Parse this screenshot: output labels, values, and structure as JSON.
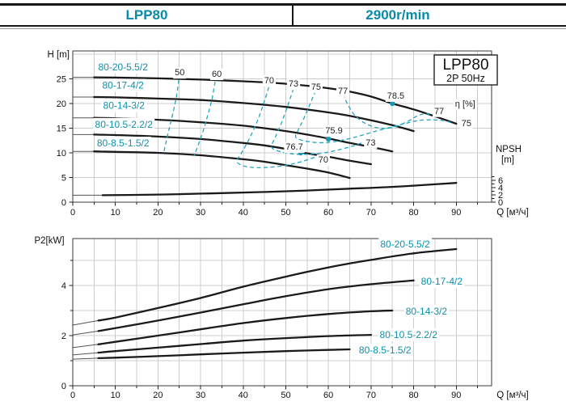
{
  "header": {
    "model": "LPP80",
    "speed": "2900r/min"
  },
  "colors": {
    "teal_text": "#0e8fae",
    "dash": "#23a6c0",
    "curve": "#1a1a1a",
    "grid": "#cccccc"
  },
  "chart_data": [
    {
      "id": "hq",
      "type": "line",
      "title_box": [
        "LPP80",
        "2P  50Hz"
      ],
      "xlabel": "Q [м³/ч]",
      "ylabel": "H [m]",
      "xlim": [
        0,
        98.3
      ],
      "ylim": [
        0,
        30.65
      ],
      "grid": true,
      "x_tick_labels": [
        0,
        10,
        20,
        30,
        40,
        50,
        60,
        70,
        80,
        90
      ],
      "x_grid": [
        5,
        10,
        15,
        20,
        25,
        30,
        35,
        40,
        45,
        50,
        55,
        60,
        65,
        70,
        75,
        80,
        85,
        90,
        95
      ],
      "y_tick_labels": [
        0,
        5,
        10,
        15,
        20,
        25
      ],
      "y_grid": [
        5,
        10,
        15,
        20,
        25,
        30
      ],
      "series": [
        {
          "name": "80-20-5.5/2",
          "lead": 1,
          "points": [
            [
              0,
              25.3
            ],
            [
              5,
              25.3
            ],
            [
              10,
              25.25
            ],
            [
              20,
              25.1
            ],
            [
              30,
              24.85
            ],
            [
              40,
              24.5
            ],
            [
              50,
              24.0
            ],
            [
              60,
              23.1
            ],
            [
              65,
              22.4
            ],
            [
              70,
              21.4
            ],
            [
              75,
              20.0
            ],
            [
              80,
              18.8
            ],
            [
              85,
              17.4
            ],
            [
              90,
              15.9
            ]
          ]
        },
        {
          "name": "80-17-4/2",
          "lead": 1,
          "points": [
            [
              0,
              21.3
            ],
            [
              5,
              21.3
            ],
            [
              10,
              21.25
            ],
            [
              20,
              21.0
            ],
            [
              30,
              20.7
            ],
            [
              40,
              20.1
            ],
            [
              50,
              19.3
            ],
            [
              60,
              18.2
            ],
            [
              65,
              17.5
            ],
            [
              70,
              16.6
            ],
            [
              75,
              15.6
            ],
            [
              80,
              14.4
            ]
          ]
        },
        {
          "name": "80-14-3/2",
          "lead": 1,
          "points": [
            [
              0,
              17.1
            ],
            [
              5,
              17.1
            ],
            [
              10,
              17.0
            ],
            [
              20,
              16.7
            ],
            [
              30,
              16.2
            ],
            [
              40,
              15.5
            ],
            [
              50,
              14.4
            ],
            [
              55,
              13.7
            ],
            [
              60,
              12.9
            ],
            [
              65,
              12.0
            ],
            [
              70,
              11.2
            ],
            [
              75,
              10.3
            ]
          ]
        },
        {
          "name": "80-10.5-2.2/2",
          "lead": 1,
          "points": [
            [
              0,
              13.7
            ],
            [
              5,
              13.7
            ],
            [
              10,
              13.6
            ],
            [
              20,
              13.3
            ],
            [
              30,
              12.8
            ],
            [
              40,
              12.0
            ],
            [
              45,
              11.5
            ],
            [
              50,
              10.8
            ],
            [
              55,
              9.9
            ],
            [
              60,
              9.2
            ],
            [
              65,
              8.4
            ],
            [
              70,
              7.7
            ]
          ]
        },
        {
          "name": "80-8.5-1.5/2",
          "lead": 1,
          "points": [
            [
              0,
              10.3
            ],
            [
              5,
              10.3
            ],
            [
              10,
              10.2
            ],
            [
              20,
              10.0
            ],
            [
              30,
              9.5
            ],
            [
              40,
              8.7
            ],
            [
              45,
              8.2
            ],
            [
              50,
              7.5
            ],
            [
              55,
              6.8
            ],
            [
              60,
              6.0
            ],
            [
              65,
              4.9
            ]
          ]
        },
        {
          "name": "NPSH",
          "axis": "npsh",
          "lead": 1,
          "points": [
            [
              0,
              1.9
            ],
            [
              7,
              1.9
            ],
            [
              15,
              2.0
            ],
            [
              25,
              2.2
            ],
            [
              35,
              2.5
            ],
            [
              45,
              2.8
            ],
            [
              55,
              3.2
            ],
            [
              65,
              3.7
            ],
            [
              75,
              4.2
            ],
            [
              85,
              4.9
            ],
            [
              90,
              5.3
            ]
          ]
        }
      ],
      "npsh_axis": {
        "title": [
          "NPSH",
          "[m]"
        ],
        "tick_labels": [
          0,
          2,
          4,
          6
        ],
        "minor_ticks": [
          1,
          3,
          5,
          7
        ]
      },
      "eta_contours": [
        {
          "value": "50",
          "points": [
            [
              24.9,
              24.8
            ],
            [
              24.3,
              21.3
            ],
            [
              23.5,
              18.0
            ],
            [
              22.6,
              14.8
            ],
            [
              21.8,
              11.8
            ],
            [
              21.3,
              9.9
            ]
          ]
        },
        {
          "value": "60",
          "points": [
            [
              33.4,
              24.4
            ],
            [
              32.7,
              21.0
            ],
            [
              31.7,
              17.7
            ],
            [
              30.6,
              14.4
            ],
            [
              29.4,
              11.5
            ],
            [
              28.5,
              9.4
            ]
          ]
        },
        {
          "value": "70",
          "points": [
            [
              46.0,
              23.3
            ],
            [
              44.8,
              20.0
            ],
            [
              43.3,
              16.4
            ],
            [
              41.4,
              12.8
            ],
            [
              39.5,
              9.8
            ],
            [
              38.5,
              8.2
            ],
            [
              40.8,
              7.2
            ],
            [
              44.6,
              7.0
            ],
            [
              49.4,
              7.4
            ],
            [
              53.6,
              8.2
            ],
            [
              57.5,
              9.3
            ]
          ]
        },
        {
          "value": "73",
          "points": [
            [
              51.8,
              23.0
            ],
            [
              50.5,
              19.7
            ],
            [
              49.0,
              16.1
            ],
            [
              47.5,
              13.1
            ],
            [
              46.7,
              11.1
            ],
            [
              49.0,
              10.2
            ],
            [
              53.2,
              9.7
            ],
            [
              58.9,
              10.0
            ],
            [
              64.2,
              11.0
            ],
            [
              67.8,
              12.0
            ]
          ]
        },
        {
          "value": "75",
          "points": [
            [
              57.0,
              22.6
            ],
            [
              55.6,
              19.7
            ],
            [
              54.1,
              16.7
            ],
            [
              52.8,
              14.4
            ],
            [
              52.4,
              13.1
            ],
            [
              55.1,
              12.3
            ],
            [
              59.8,
              12.1
            ],
            [
              65.5,
              13.0
            ],
            [
              71.2,
              14.4
            ],
            [
              76.9,
              15.7
            ],
            [
              81.6,
              16.6
            ],
            [
              86.4,
              16.6
            ],
            [
              88.9,
              16.1
            ]
          ]
        },
        {
          "value": "77",
          "points": [
            [
              63.4,
              22.0
            ],
            [
              64.6,
              19.7
            ],
            [
              66.1,
              17.7
            ],
            [
              68.4,
              16.1
            ],
            [
              71.4,
              15.1
            ],
            [
              74.8,
              15.1
            ],
            [
              78.2,
              16.2
            ],
            [
              80.9,
              17.5
            ],
            [
              83.2,
              18.0
            ],
            [
              83.8,
              17.2
            ]
          ]
        }
      ],
      "bep_points": [
        {
          "value": "78.5",
          "q": 75,
          "h": 20.0,
          "label_q": 75.8,
          "label_h": 21.0
        },
        {
          "value": "75.9",
          "q": 60,
          "h": 12.8,
          "label_q": 61.3,
          "label_h": 13.9
        },
        {
          "value": "76.7",
          "q": 53.5,
          "h": 10.0,
          "label_q": 52.0,
          "label_h": 10.65
        }
      ],
      "labels": [
        {
          "text": "80-20-5.5/2",
          "q": 11.8,
          "h": 26.7,
          "cls": "teal"
        },
        {
          "text": "80-17-4/2",
          "q": 11.8,
          "h": 23.0,
          "cls": "teal"
        },
        {
          "text": "80-14-3/2",
          "q": 12.0,
          "h": 18.9,
          "cls": "teal"
        },
        {
          "text": "80-10.5-2.2/2",
          "q": 12.0,
          "h": 15.1,
          "cls": "teal"
        },
        {
          "text": "80-8.5-1.5/2",
          "q": 11.8,
          "h": 11.3,
          "cls": "teal"
        },
        {
          "text": "50",
          "q": 25.1,
          "h": 25.7,
          "cls": "eta"
        },
        {
          "text": "60",
          "q": 33.8,
          "h": 25.4,
          "cls": "eta"
        },
        {
          "text": "70",
          "q": 46.1,
          "h": 24.1,
          "cls": "eta"
        },
        {
          "text": "73",
          "q": 51.8,
          "h": 23.4,
          "cls": "eta"
        },
        {
          "text": "75",
          "q": 57.1,
          "h": 22.8,
          "cls": "eta"
        },
        {
          "text": "77",
          "q": 63.4,
          "h": 22.0,
          "cls": "eta"
        },
        {
          "text": "77",
          "q": 86.0,
          "h": 17.9,
          "cls": "eta"
        },
        {
          "text": "η [%]",
          "q": 92.1,
          "h": 19.3,
          "cls": "eta"
        },
        {
          "text": "75",
          "q": 92.4,
          "h": 15.4,
          "cls": "eta"
        },
        {
          "text": "73",
          "q": 69.9,
          "h": 11.5,
          "cls": "eta"
        },
        {
          "text": "70",
          "q": 58.8,
          "h": 8.0,
          "cls": "eta"
        }
      ]
    },
    {
      "id": "p2",
      "type": "line",
      "xlabel": "Q [м³/ч]",
      "ylabel": "P2[kW]",
      "xlim": [
        0,
        98.3
      ],
      "ylim": [
        0,
        5.87
      ],
      "grid": true,
      "x_tick_labels": [
        0,
        10,
        20,
        30,
        40,
        50,
        60,
        70,
        80,
        90
      ],
      "x_grid": [
        5,
        10,
        15,
        20,
        25,
        30,
        35,
        40,
        45,
        50,
        55,
        60,
        65,
        70,
        75,
        80,
        85,
        90,
        95
      ],
      "y_tick_labels": [
        0,
        2,
        4
      ],
      "y_minor_ticks": [
        1,
        3,
        5
      ],
      "y_grid": [
        1,
        2,
        3,
        4,
        5
      ],
      "series": [
        {
          "name": "80-20-5.5/2",
          "lead": 1,
          "points": [
            [
              0,
              2.42
            ],
            [
              6,
              2.6
            ],
            [
              10,
              2.72
            ],
            [
              20,
              3.1
            ],
            [
              30,
              3.5
            ],
            [
              40,
              3.95
            ],
            [
              50,
              4.35
            ],
            [
              60,
              4.72
            ],
            [
              70,
              5.02
            ],
            [
              80,
              5.28
            ],
            [
              90,
              5.45
            ]
          ]
        },
        {
          "name": "80-17-4/2",
          "lead": 1,
          "points": [
            [
              0,
              2.03
            ],
            [
              6,
              2.18
            ],
            [
              10,
              2.3
            ],
            [
              20,
              2.6
            ],
            [
              30,
              2.92
            ],
            [
              40,
              3.25
            ],
            [
              50,
              3.57
            ],
            [
              60,
              3.85
            ],
            [
              70,
              4.05
            ],
            [
              80,
              4.2
            ]
          ]
        },
        {
          "name": "80-14-3/2",
          "lead": 1,
          "points": [
            [
              0,
              1.52
            ],
            [
              6,
              1.65
            ],
            [
              10,
              1.75
            ],
            [
              20,
              2.0
            ],
            [
              30,
              2.25
            ],
            [
              40,
              2.5
            ],
            [
              50,
              2.7
            ],
            [
              60,
              2.86
            ],
            [
              70,
              2.97
            ],
            [
              75,
              3.0
            ]
          ]
        },
        {
          "name": "80-10.5-2.2/2",
          "lead": 1,
          "points": [
            [
              0,
              1.23
            ],
            [
              6,
              1.32
            ],
            [
              10,
              1.38
            ],
            [
              20,
              1.52
            ],
            [
              30,
              1.66
            ],
            [
              40,
              1.8
            ],
            [
              50,
              1.9
            ],
            [
              60,
              1.98
            ],
            [
              70,
              2.03
            ]
          ]
        },
        {
          "name": "80-8.5-1.5/2",
          "lead": 1,
          "points": [
            [
              0,
              1.06
            ],
            [
              6,
              1.1
            ],
            [
              10,
              1.12
            ],
            [
              20,
              1.18
            ],
            [
              30,
              1.25
            ],
            [
              40,
              1.32
            ],
            [
              50,
              1.38
            ],
            [
              60,
              1.43
            ],
            [
              65,
              1.45
            ]
          ]
        }
      ],
      "labels": [
        {
          "text": "80-20-5.5/2",
          "q": 78.0,
          "h": 5.52,
          "cls": "teal"
        },
        {
          "text": "80-17-4/2",
          "q": 86.6,
          "h": 4.03,
          "cls": "teal"
        },
        {
          "text": "80-14-3/2",
          "q": 83.0,
          "h": 2.84,
          "cls": "teal"
        },
        {
          "text": "80-10.5-2.2/2",
          "q": 78.8,
          "h": 1.9,
          "cls": "teal"
        },
        {
          "text": "80-8.5-1.5/2",
          "q": 73.3,
          "h": 1.29,
          "cls": "teal"
        }
      ]
    }
  ]
}
